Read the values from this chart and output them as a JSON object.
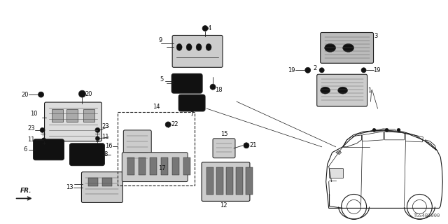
{
  "background_color": "#ffffff",
  "fig_width": 6.4,
  "fig_height": 3.2,
  "dpi": 100,
  "watermark": "TGS4B1000",
  "line_color": "#1a1a1a",
  "label_fontsize": 6.0
}
